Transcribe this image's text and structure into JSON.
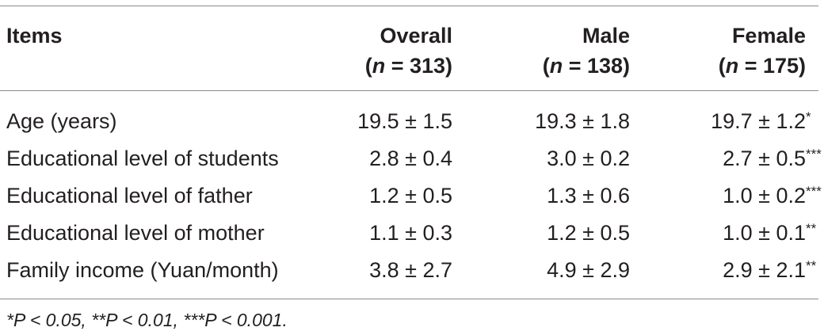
{
  "table": {
    "headers": {
      "items": "Items",
      "overall": {
        "label": "Overall",
        "n_prefix": "(",
        "n_var": "n",
        "n_value": " = 313)"
      },
      "male": {
        "label": "Male",
        "n_prefix": "(",
        "n_var": "n",
        "n_value": " = 138)"
      },
      "female": {
        "label": "Female",
        "n_prefix": "(",
        "n_var": "n",
        "n_value": " = 175)"
      }
    },
    "rows": [
      {
        "label": "Age (years)",
        "overall": "19.5 ± 1.5",
        "male": "19.3 ± 1.8",
        "female": "19.7 ± 1.2",
        "sig": "*"
      },
      {
        "label": "Educational level of students",
        "overall": "2.8 ± 0.4",
        "male": "3.0 ± 0.2",
        "female": "2.7 ± 0.5",
        "sig": "***"
      },
      {
        "label": "Educational level of father",
        "overall": "1.2 ± 0.5",
        "male": "1.3 ± 0.6",
        "female": "1.0 ± 0.2",
        "sig": "***"
      },
      {
        "label": "Educational level of mother",
        "overall": "1.1 ± 0.3",
        "male": "1.2 ± 0.5",
        "female": "1.0 ± 0.1",
        "sig": "**"
      },
      {
        "label": "Family income (Yuan/month)",
        "overall": "3.8 ± 2.7",
        "male": "4.9 ± 2.9",
        "female": "2.9 ± 2.1",
        "sig": "**"
      }
    ],
    "footnote": "*P < 0.05, **P < 0.01, ***P < 0.001."
  }
}
